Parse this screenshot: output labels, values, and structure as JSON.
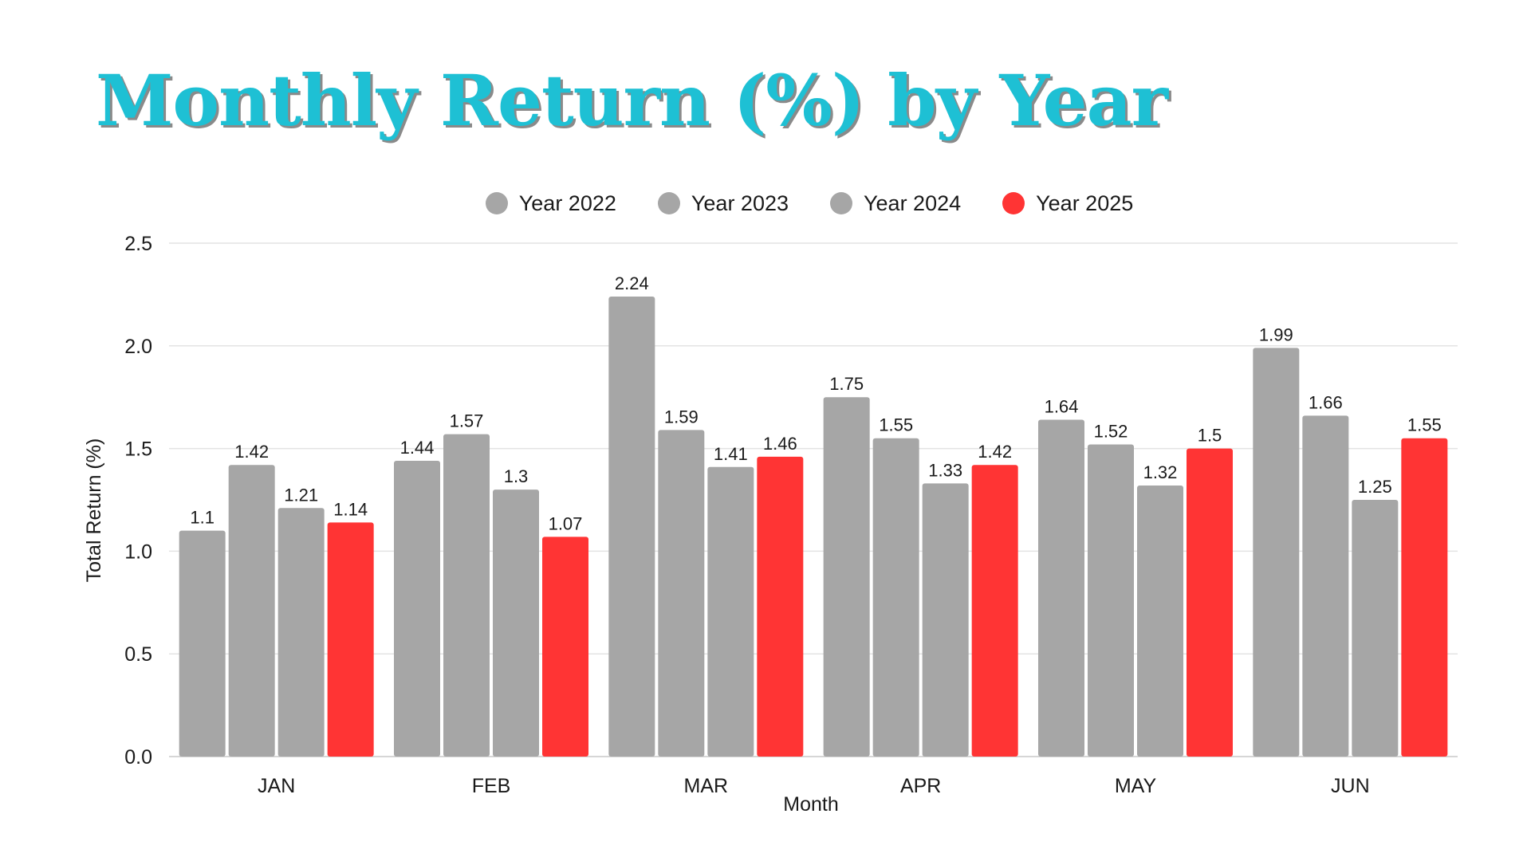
{
  "chart_data": {
    "type": "bar",
    "title": "Monthly Return (%) by Year",
    "xlabel": "Month",
    "ylabel": "Total Return (%)",
    "categories": [
      "JAN",
      "FEB",
      "MAR",
      "APR",
      "MAY",
      "JUN"
    ],
    "series": [
      {
        "name": "Year 2022",
        "color": "#a6a6a6",
        "values": [
          1.1,
          1.44,
          2.24,
          1.75,
          1.64,
          1.99
        ]
      },
      {
        "name": "Year 2023",
        "color": "#a6a6a6",
        "values": [
          1.42,
          1.57,
          1.59,
          1.55,
          1.52,
          1.66
        ]
      },
      {
        "name": "Year 2024",
        "color": "#a6a6a6",
        "values": [
          1.21,
          1.3,
          1.41,
          1.33,
          1.32,
          1.25
        ]
      },
      {
        "name": "Year 2025",
        "color": "#ff3434",
        "values": [
          1.14,
          1.07,
          1.46,
          1.42,
          1.5,
          1.55
        ]
      }
    ],
    "ylim": [
      0,
      2.5
    ],
    "yticks": [
      "0.0",
      "0.5",
      "1.0",
      "1.5",
      "2.0",
      "2.5"
    ],
    "grid": true,
    "legend_position": "top",
    "data_labels": true
  },
  "colors": {
    "title": "#1ec0d4",
    "title_shadow": "#8a8a8a",
    "grid": "#e3e3e3",
    "axis": "#c8c8c8"
  }
}
